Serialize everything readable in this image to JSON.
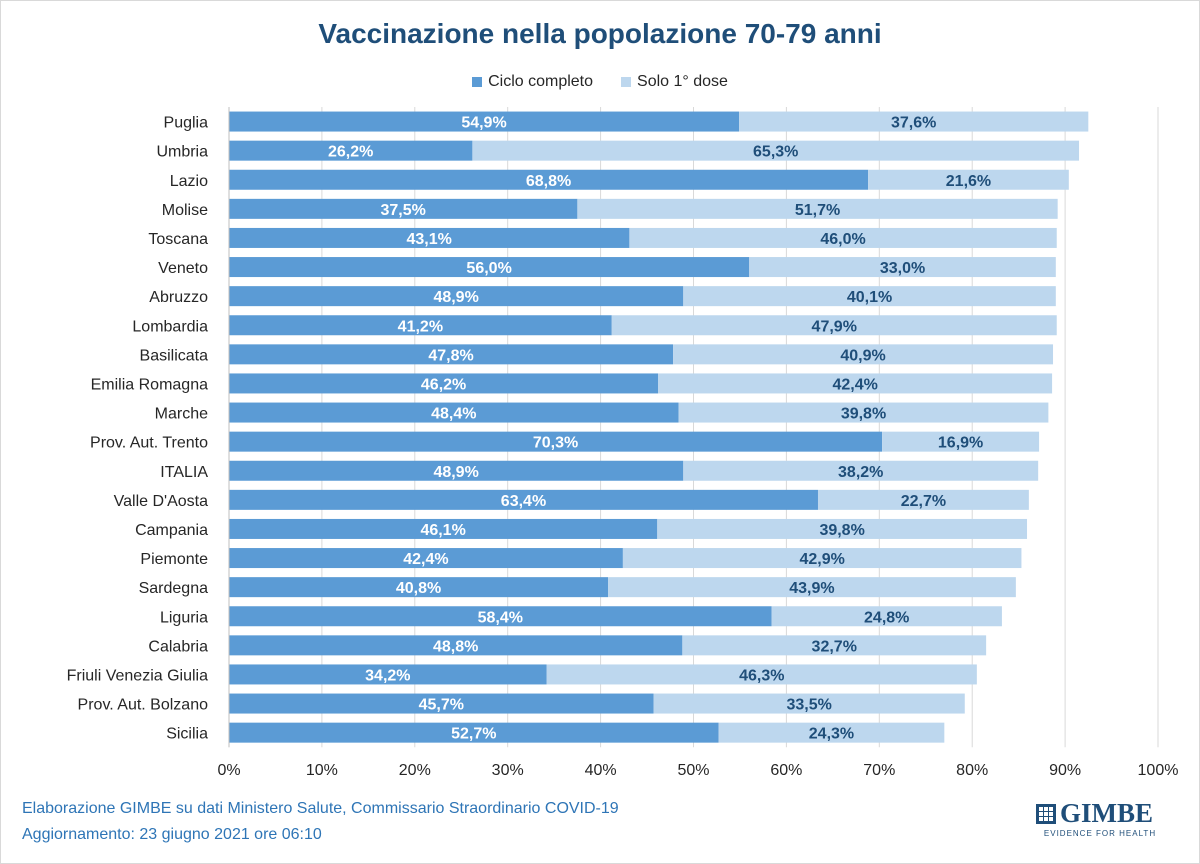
{
  "title": "Vaccinazione nella popolazione 70-79 anni",
  "footer": {
    "line1": "Elaborazione GIMBE su dati Ministero Salute, Commissario Straordinario COVID-19",
    "line2": "Aggiornamento: 23 giugno 2021 ore 06:10"
  },
  "logo": {
    "word": "GIMBE",
    "tagline": "EVIDENCE FOR HEALTH"
  },
  "colors": {
    "ciclo_completo": "#5b9bd5",
    "solo_prima_dose": "#bdd7ee",
    "title": "#1f4e79",
    "label_light": "#ffffff",
    "label_dark": "#1f4e79"
  },
  "chart_data": {
    "type": "bar",
    "orientation": "horizontal",
    "stacked": true,
    "title": "Vaccinazione nella popolazione 70-79 anni",
    "xlabel": "",
    "ylabel": "",
    "xlim": [
      0,
      100
    ],
    "x_ticks": [
      "0%",
      "10%",
      "20%",
      "30%",
      "40%",
      "50%",
      "60%",
      "70%",
      "80%",
      "90%",
      "100%"
    ],
    "grid": true,
    "legend_position": "top",
    "categories": [
      "Puglia",
      "Umbria",
      "Lazio",
      "Molise",
      "Toscana",
      "Veneto",
      "Abruzzo",
      "Lombardia",
      "Basilicata",
      "Emilia Romagna",
      "Marche",
      "Prov. Aut. Trento",
      "ITALIA",
      "Valle D'Aosta",
      "Campania",
      "Piemonte",
      "Sardegna",
      "Liguria",
      "Calabria",
      "Friuli Venezia Giulia",
      "Prov. Aut. Bolzano",
      "Sicilia"
    ],
    "series": [
      {
        "name": "Ciclo completo",
        "values": [
          54.9,
          26.2,
          68.8,
          37.5,
          43.1,
          56.0,
          48.9,
          41.2,
          47.8,
          46.2,
          48.4,
          70.3,
          48.9,
          63.4,
          46.1,
          42.4,
          40.8,
          58.4,
          48.8,
          34.2,
          45.7,
          52.7
        ],
        "labels": [
          "54,9%",
          "26,2%",
          "68,8%",
          "37,5%",
          "43,1%",
          "56,0%",
          "48,9%",
          "41,2%",
          "47,8%",
          "46,2%",
          "48,4%",
          "70,3%",
          "48,9%",
          "63,4%",
          "46,1%",
          "42,4%",
          "40,8%",
          "58,4%",
          "48,8%",
          "34,2%",
          "45,7%",
          "52,7%"
        ]
      },
      {
        "name": "Solo 1° dose",
        "values": [
          37.6,
          65.3,
          21.6,
          51.7,
          46.0,
          33.0,
          40.1,
          47.9,
          40.9,
          42.4,
          39.8,
          16.9,
          38.2,
          22.7,
          39.8,
          42.9,
          43.9,
          24.8,
          32.7,
          46.3,
          33.5,
          24.3
        ],
        "labels": [
          "37,6%",
          "65,3%",
          "21,6%",
          "51,7%",
          "46,0%",
          "33,0%",
          "40,1%",
          "47,9%",
          "40,9%",
          "42,4%",
          "39,8%",
          "16,9%",
          "38,2%",
          "22,7%",
          "39,8%",
          "42,9%",
          "43,9%",
          "24,8%",
          "32,7%",
          "46,3%",
          "33,5%",
          "24,3%"
        ]
      }
    ]
  }
}
